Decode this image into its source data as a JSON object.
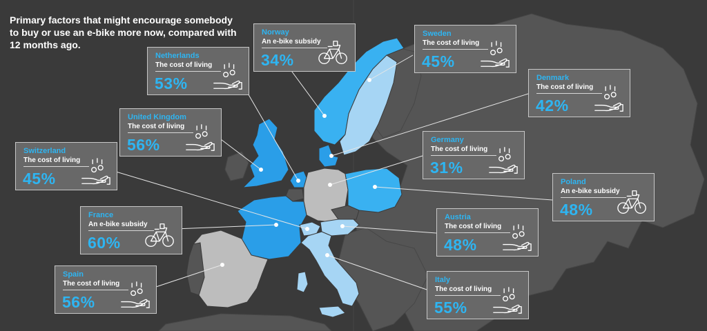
{
  "title": "Primary factors that might encourage somebody to buy or use an e-bike more now, compared with 12 months ago.",
  "colors": {
    "background": "#3a3a3a",
    "land_other": "#555555",
    "cost_of_living_strong": "#2a9ee8",
    "cost_of_living_light": "#a6d5f4",
    "e_bike_subsidy": "#39b1f1",
    "lowest_value": "#bdbdbd",
    "accent_text": "#2eb5f2"
  },
  "cards": [
    {
      "id": "norway",
      "country": "Norway",
      "factor": "An e-bike subsidy",
      "value": "34%",
      "icon": "bicycle-icon"
    },
    {
      "id": "sweden",
      "country": "Sweden",
      "factor": "The cost of living",
      "value": "45%",
      "icon": "coins-hand-icon"
    },
    {
      "id": "netherlands",
      "country": "Netherlands",
      "factor": "The cost of living",
      "value": "53%",
      "icon": "coins-hand-icon"
    },
    {
      "id": "denmark",
      "country": "Denmark",
      "factor": "The cost of living",
      "value": "42%",
      "icon": "coins-hand-icon"
    },
    {
      "id": "united-kingdom",
      "country": "United Kingdom",
      "factor": "The cost of living",
      "value": "56%",
      "icon": "coins-hand-icon"
    },
    {
      "id": "germany",
      "country": "Germany",
      "factor": "The cost of living",
      "value": "31%",
      "icon": "coins-hand-icon"
    },
    {
      "id": "switzerland",
      "country": "Switzerland",
      "factor": "The cost of living",
      "value": "45%",
      "icon": "coins-hand-icon"
    },
    {
      "id": "poland",
      "country": "Poland",
      "factor": "An e-bike subsidy",
      "value": "48%",
      "icon": "bicycle-icon"
    },
    {
      "id": "france",
      "country": "France",
      "factor": "An e-bike subsidy",
      "value": "60%",
      "icon": "bicycle-icon"
    },
    {
      "id": "austria",
      "country": "Austria",
      "factor": "The cost of living",
      "value": "48%",
      "icon": "coins-hand-icon"
    },
    {
      "id": "spain",
      "country": "Spain",
      "factor": "The cost of living",
      "value": "56%",
      "icon": "coins-hand-icon"
    },
    {
      "id": "italy",
      "country": "Italy",
      "factor": "The cost of living",
      "value": "55%",
      "icon": "coins-hand-icon"
    }
  ]
}
